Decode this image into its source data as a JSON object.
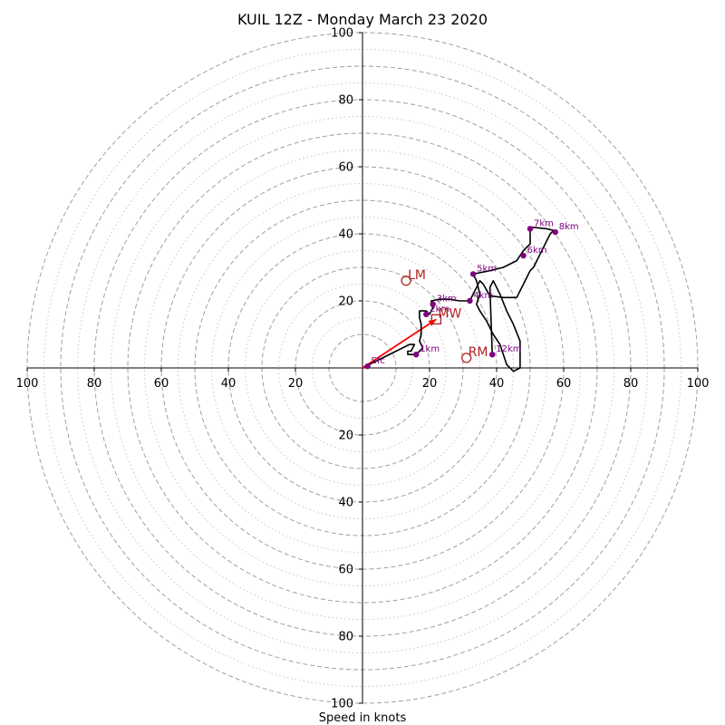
{
  "chart_data": {
    "type": "hodograph",
    "title": "KUIL 12Z - Monday March 23 2020",
    "xlabel": "Speed in knots",
    "units": "knots",
    "range": [
      -100,
      100
    ],
    "rings": {
      "dashed": [
        10,
        20,
        30,
        40,
        50,
        60,
        70,
        80,
        90,
        100
      ],
      "dotted": [
        15,
        25,
        35,
        45,
        55,
        65,
        75,
        85,
        95
      ]
    },
    "x_ticks": [
      -100,
      -80,
      -60,
      -40,
      -20,
      0,
      20,
      40,
      60,
      80,
      100
    ],
    "x_tick_labels": [
      "100",
      "80",
      "60",
      "40",
      "20",
      "",
      "20",
      "40",
      "60",
      "80",
      "100"
    ],
    "y_ticks_up": [
      20,
      40,
      60,
      80,
      100
    ],
    "y_ticks_up_labels": [
      "20",
      "40",
      "60",
      "80",
      "100"
    ],
    "y_ticks_down": [
      -20,
      -40,
      -60,
      -80,
      -100
    ],
    "y_ticks_down_labels": [
      "20",
      "40",
      "60",
      "80",
      "100"
    ],
    "trace": [
      [
        2,
        1
      ],
      [
        6,
        3
      ],
      [
        10,
        5
      ],
      [
        14,
        7
      ],
      [
        15.5,
        7
      ],
      [
        14.5,
        5
      ],
      [
        13.5,
        5
      ],
      [
        13.5,
        4
      ],
      [
        16,
        4
      ],
      [
        18,
        6
      ],
      [
        17,
        8
      ],
      [
        17.5,
        10
      ],
      [
        17.5,
        13
      ],
      [
        17,
        15
      ],
      [
        17,
        17
      ],
      [
        19,
        17
      ],
      [
        20,
        16
      ],
      [
        21,
        18
      ],
      [
        20.5,
        20
      ],
      [
        23,
        20.5
      ],
      [
        26,
        20.5
      ],
      [
        29,
        20
      ],
      [
        32,
        20
      ],
      [
        33,
        22
      ],
      [
        34,
        24
      ],
      [
        35,
        26
      ],
      [
        36,
        25
      ],
      [
        38,
        21.5
      ],
      [
        42,
        21
      ],
      [
        46,
        21
      ],
      [
        47,
        23
      ],
      [
        48,
        25
      ],
      [
        49,
        27
      ],
      [
        50,
        29
      ],
      [
        51,
        30
      ],
      [
        51.5,
        31
      ],
      [
        52,
        32
      ],
      [
        53,
        34
      ],
      [
        54,
        36
      ],
      [
        55,
        38
      ],
      [
        56,
        40
      ],
      [
        57,
        41
      ],
      [
        55,
        41.5
      ],
      [
        50,
        42
      ],
      [
        50,
        41
      ],
      [
        50,
        39
      ],
      [
        50,
        37
      ],
      [
        48,
        35
      ],
      [
        46,
        32
      ],
      [
        42,
        30
      ],
      [
        38,
        29
      ],
      [
        33,
        28
      ],
      [
        34,
        26
      ],
      [
        35,
        22
      ],
      [
        34,
        19
      ],
      [
        35,
        17
      ],
      [
        37,
        14
      ],
      [
        39,
        10
      ],
      [
        41,
        7
      ],
      [
        42,
        4
      ],
      [
        43,
        1
      ],
      [
        45,
        -1
      ],
      [
        47,
        0
      ],
      [
        47,
        5
      ],
      [
        47,
        8
      ],
      [
        45,
        13
      ],
      [
        43,
        17
      ],
      [
        41,
        22
      ],
      [
        39,
        26
      ],
      [
        38,
        24
      ],
      [
        38.7,
        4
      ]
    ],
    "height_points": [
      {
        "label": "Sfc",
        "u": 1.5,
        "v": 0.5
      },
      {
        "label": "1km",
        "u": 16,
        "v": 4
      },
      {
        "label": "2km",
        "u": 19,
        "v": 16
      },
      {
        "label": "3km",
        "u": 21,
        "v": 19
      },
      {
        "label": "4km",
        "u": 32,
        "v": 20
      },
      {
        "label": "5km",
        "u": 33,
        "v": 28
      },
      {
        "label": "6km",
        "u": 48,
        "v": 33.5
      },
      {
        "label": "7km",
        "u": 50,
        "v": 41.5
      },
      {
        "label": "8km",
        "u": 57.5,
        "v": 40.5
      },
      {
        "label": "12km",
        "u": 38.7,
        "v": 4
      }
    ],
    "storm_motion": {
      "LM": {
        "label": "LM",
        "u": 13,
        "v": 26
      },
      "RM": {
        "label": "RM",
        "u": 31,
        "v": 3
      },
      "MW": {
        "label": "MW",
        "u": 22,
        "v": 14.5
      }
    },
    "shear_vector": {
      "from": [
        0,
        0
      ],
      "to": [
        22,
        14.5
      ]
    },
    "colors": {
      "trace": "#000000",
      "height_points": "#800080",
      "storm_motion": "#b22222",
      "shear_vector": "#ff0000",
      "rings": "#a0a0a0"
    }
  }
}
